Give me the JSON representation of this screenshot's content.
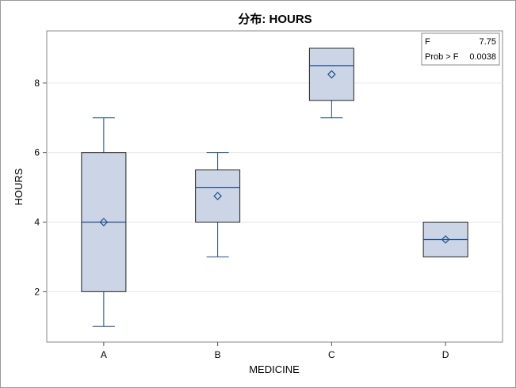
{
  "chart_data": {
    "type": "box",
    "title": "分布: HOURS",
    "xlabel": "MEDICINE",
    "ylabel": "HOURS",
    "categories": [
      "A",
      "B",
      "C",
      "D"
    ],
    "ylim": [
      0.55,
      9.5
    ],
    "yticks": [
      2,
      4,
      6,
      8
    ],
    "grid": true,
    "boxes": [
      {
        "category": "A",
        "min": 1,
        "q1": 2,
        "median": 4,
        "q3": 6,
        "max": 7,
        "mean": 4
      },
      {
        "category": "B",
        "min": 3,
        "q1": 4,
        "median": 5,
        "q3": 5.5,
        "max": 6,
        "mean": 4.75
      },
      {
        "category": "C",
        "min": 7,
        "q1": 7.5,
        "median": 8.5,
        "q3": 9,
        "max": 9,
        "mean": 8.25
      },
      {
        "category": "D",
        "min": 3,
        "q1": 3,
        "median": 3.5,
        "q3": 4,
        "max": 4,
        "mean": 3.5
      }
    ],
    "stats_table": {
      "placement": "top-right",
      "rows": [
        {
          "label": "F",
          "value": "7.75"
        },
        {
          "label": "Prob > F",
          "value": "0.0038"
        }
      ]
    },
    "colors": {
      "box_fill": "#cbd5e6",
      "box_stroke": "#1f4e8c",
      "frame": "#888888",
      "grid": "#e6e6e6"
    }
  }
}
